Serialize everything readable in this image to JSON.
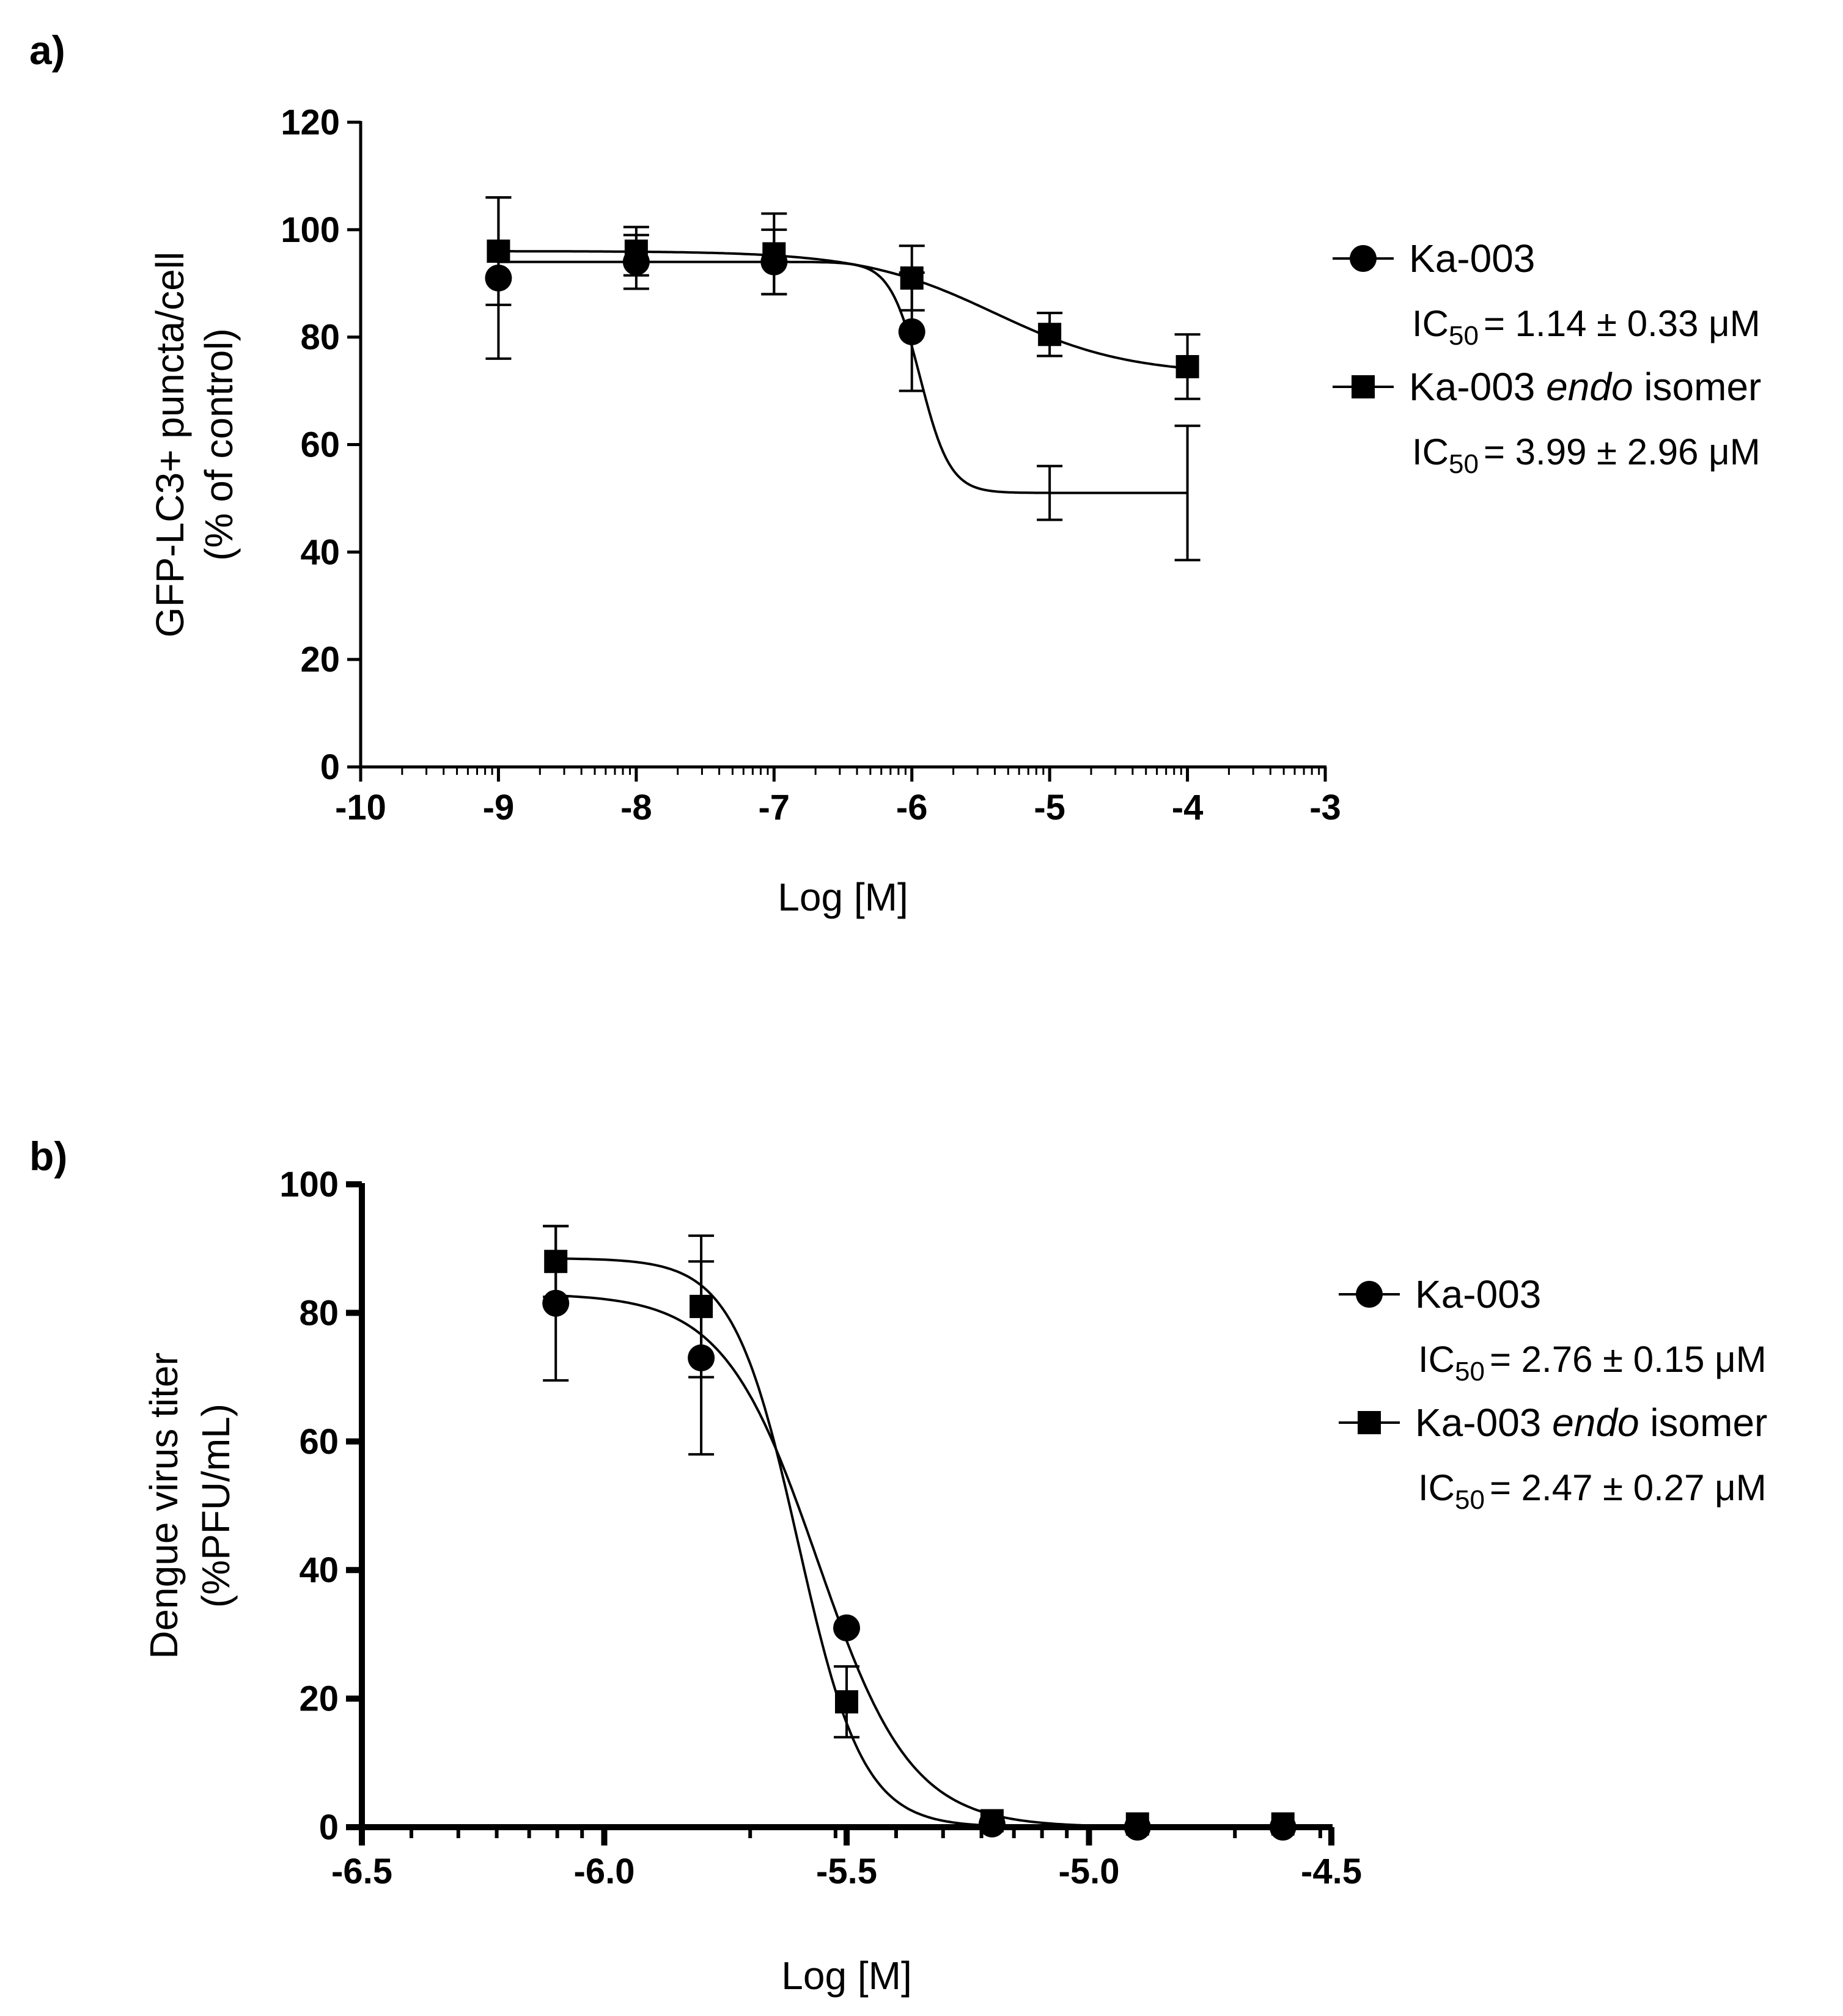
{
  "chart_data": [
    {
      "panel": "a)",
      "type": "line",
      "xlabel": "Log [M]",
      "ylabel_lines": [
        "GFP-LC3+ puncta/cell",
        "(% of control)"
      ],
      "xlim": [
        -10,
        -3
      ],
      "ylim": [
        0,
        120
      ],
      "xticks": [
        -10,
        -9,
        -8,
        -7,
        -6,
        -5,
        -4,
        -3
      ],
      "xtick_labels": [
        "-10",
        "-9",
        "-8",
        "-7",
        "-6",
        "-5",
        "-4",
        "-3"
      ],
      "yticks": [
        0,
        20,
        40,
        60,
        80,
        100,
        120
      ],
      "ytick_labels": [
        "0",
        "20",
        "40",
        "60",
        "80",
        "100",
        "120"
      ],
      "minor_log_ticks": true,
      "legend_position": "right",
      "series": [
        {
          "name": "Ka-003",
          "marker": "circle",
          "ic50_prefix": "IC",
          "ic50_sub": "50",
          "ic50_value": "= 1.14 ± 0.33 μM",
          "x": [
            -9,
            -8,
            -7,
            -6,
            -5,
            -4
          ],
          "y": [
            91,
            94,
            94,
            81,
            51,
            51
          ],
          "err": [
            15,
            5,
            6,
            11,
            5,
            12.5
          ],
          "show_marker": [
            true,
            true,
            true,
            true,
            false,
            false
          ],
          "fit": {
            "bottom": 51,
            "top": 94,
            "logIC50": -5.94,
            "hill": 4
          }
        },
        {
          "name": "Ka-003 endo isomer",
          "name_parts": [
            "Ka-003 ",
            "endo",
            " isomer"
          ],
          "marker": "square",
          "ic50_prefix": "IC",
          "ic50_sub": "50",
          "ic50_value": "= 3.99 ± 2.96 μM",
          "x": [
            -9,
            -8,
            -7,
            -6,
            -5,
            -4
          ],
          "y": [
            96,
            96,
            95.5,
            91,
            80.5,
            74.5
          ],
          "err": [
            10,
            4.5,
            7.5,
            6,
            4,
            6
          ],
          "show_marker": [
            true,
            true,
            true,
            true,
            true,
            true
          ],
          "fit": {
            "bottom": 73,
            "top": 96,
            "logIC50": -5.4,
            "hill": 0.9
          }
        }
      ]
    },
    {
      "panel": "b)",
      "type": "line",
      "xlabel": "Log [M]",
      "ylabel_lines": [
        "Dengue virus titer",
        "(%PFU/mL)"
      ],
      "xlim": [
        -6.5,
        -4.5
      ],
      "ylim": [
        0,
        100
      ],
      "xticks": [
        -6.5,
        -6.0,
        -5.5,
        -5.0,
        -4.5
      ],
      "xtick_labels": [
        "-6.5",
        "-6.0",
        "-5.5",
        "-5.0",
        "-4.5"
      ],
      "yticks": [
        0,
        20,
        40,
        60,
        80,
        100
      ],
      "ytick_labels": [
        "0",
        "20",
        "40",
        "60",
        "80",
        "100"
      ],
      "minor_log_ticks": true,
      "legend_position": "right",
      "series": [
        {
          "name": "Ka-003",
          "marker": "circle",
          "ic50_prefix": "IC",
          "ic50_sub": "50",
          "ic50_value": "= 2.76 ± 0.15 μM",
          "x": [
            -6.1,
            -5.8,
            -5.5,
            -5.2,
            -4.9,
            -4.6
          ],
          "y": [
            81.5,
            73,
            31,
            0.5,
            0,
            0
          ],
          "err": [
            12,
            15,
            0,
            0,
            0,
            0
          ],
          "show_marker": [
            true,
            true,
            true,
            true,
            true,
            true
          ],
          "fit": {
            "bottom": 0,
            "top": 83,
            "logIC50": -5.56,
            "hill": 4.5
          }
        },
        {
          "name": "Ka-003 endo isomer",
          "name_parts": [
            "Ka-003 ",
            "endo",
            " isomer"
          ],
          "marker": "square",
          "ic50_prefix": "IC",
          "ic50_sub": "50",
          "ic50_value": "= 2.47 ± 0.27 μM",
          "x": [
            -6.1,
            -5.8,
            -5.5,
            -5.2,
            -4.9,
            -4.6
          ],
          "y": [
            88,
            81,
            19.5,
            1,
            0.5,
            0.5
          ],
          "err": [
            5.5,
            11,
            5.5,
            0,
            0,
            0
          ],
          "show_marker": [
            true,
            true,
            true,
            true,
            true,
            true
          ],
          "fit": {
            "bottom": 0,
            "top": 88.5,
            "logIC50": -5.6,
            "hill": 6.5
          }
        }
      ]
    }
  ]
}
